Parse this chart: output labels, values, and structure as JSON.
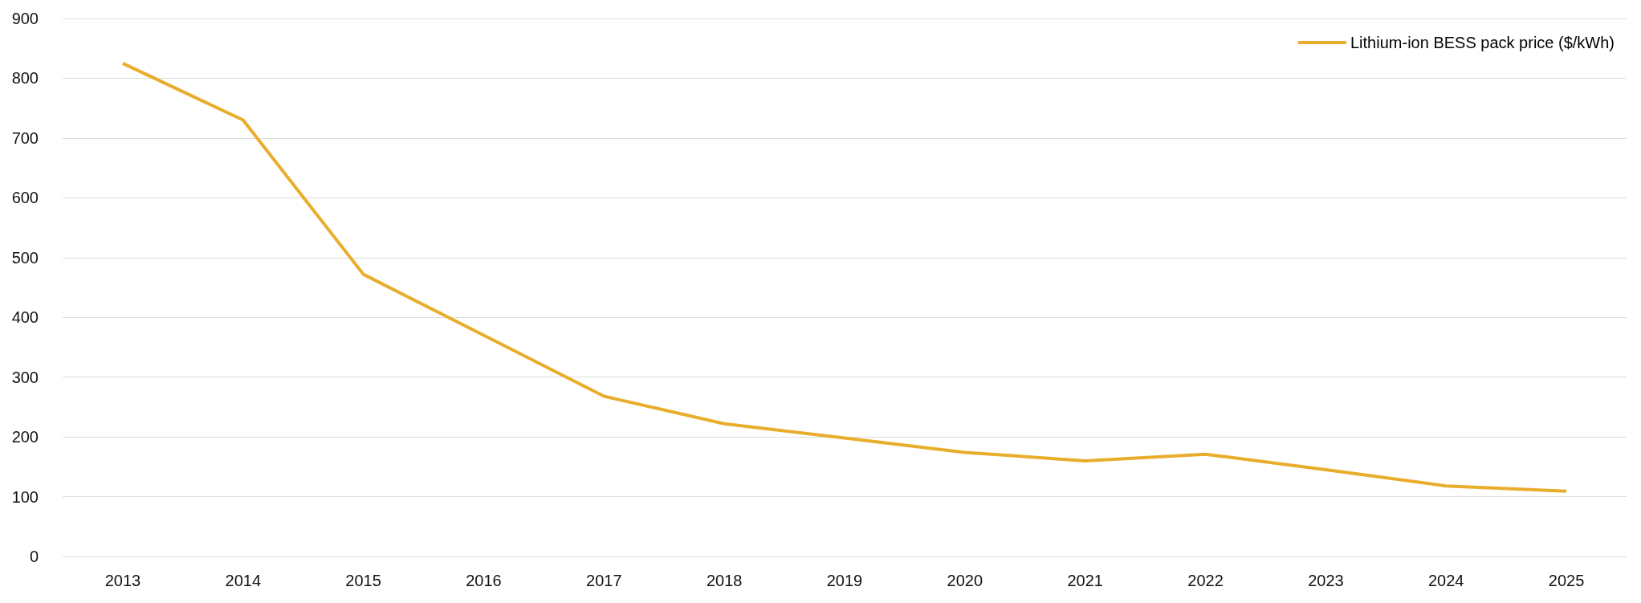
{
  "chart_data": {
    "type": "line",
    "categories": [
      "2013",
      "2014",
      "2015",
      "2016",
      "2017",
      "2018",
      "2019",
      "2020",
      "2021",
      "2022",
      "2023",
      "2024",
      "2025"
    ],
    "series": [
      {
        "name": "Lithium-ion BESS pack price ($/kWh)",
        "color": "#e9ad2c",
        "values": [
          825,
          730,
          472,
          370,
          268,
          222,
          198,
          174,
          160,
          171,
          145,
          118,
          109
        ]
      }
    ],
    "ylim": [
      0,
      900
    ],
    "yticks": [
      0,
      100,
      200,
      300,
      400,
      500,
      600,
      700,
      800,
      900
    ],
    "grid": "y",
    "legend": "top right",
    "marker": "none",
    "line_style": "solid"
  }
}
